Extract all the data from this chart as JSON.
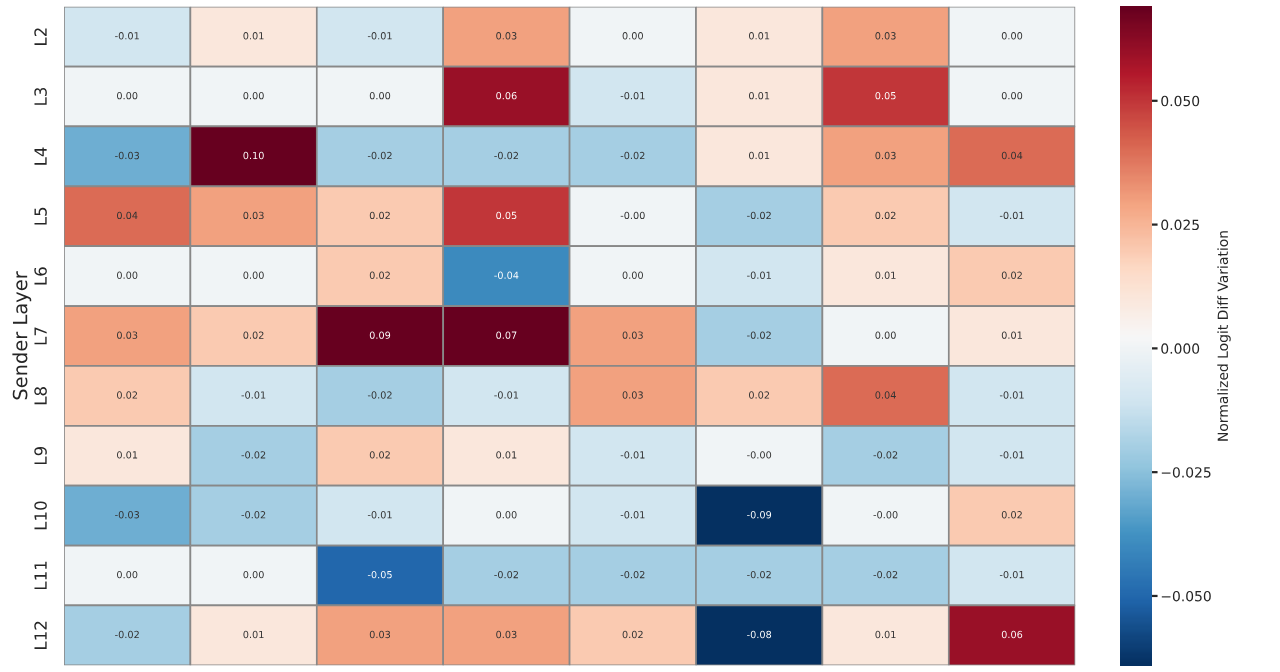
{
  "chart_data": {
    "type": "heatmap",
    "ylabel": "Sender Layer",
    "clabel": "Normalized Logit Diff Variation",
    "categories": [
      null,
      null,
      null,
      null,
      null,
      null,
      null,
      null
    ],
    "y_categories": [
      "L2",
      "L3",
      "L4",
      "L5",
      "L6",
      "L7",
      "L8",
      "L9",
      "L10",
      "L11",
      "L12"
    ],
    "cells": [
      [
        -0.01,
        0.01,
        -0.01,
        0.03,
        0.0,
        0.01,
        0.03,
        0.0
      ],
      [
        0.0,
        0.0,
        0.0,
        0.06,
        -0.01,
        0.01,
        0.05,
        0.0
      ],
      [
        -0.03,
        0.1,
        -0.02,
        -0.02,
        -0.02,
        0.01,
        0.03,
        0.04
      ],
      [
        0.04,
        0.03,
        0.02,
        0.05,
        -0.0,
        -0.02,
        0.02,
        -0.01
      ],
      [
        0.0,
        0.0,
        0.02,
        -0.04,
        0.0,
        -0.01,
        0.01,
        0.02
      ],
      [
        0.03,
        0.02,
        0.09,
        0.07,
        0.03,
        -0.02,
        0.0,
        0.01
      ],
      [
        0.02,
        -0.01,
        -0.02,
        -0.01,
        0.03,
        0.02,
        0.04,
        -0.01
      ],
      [
        0.01,
        -0.02,
        0.02,
        0.01,
        -0.01,
        -0.0,
        -0.02,
        -0.01
      ],
      [
        -0.03,
        -0.02,
        -0.01,
        0.0,
        -0.01,
        -0.09,
        -0.0,
        0.02
      ],
      [
        0.0,
        0.0,
        -0.05,
        -0.02,
        -0.02,
        -0.02,
        -0.02,
        -0.01
      ],
      [
        -0.02,
        0.01,
        0.03,
        0.03,
        0.02,
        -0.08,
        0.01,
        0.06
      ]
    ],
    "cell_labels": [
      [
        "-0.01",
        "0.01",
        "-0.01",
        "0.03",
        "0.00",
        "0.01",
        "0.03",
        "0.00"
      ],
      [
        "0.00",
        "0.00",
        "0.00",
        "0.06",
        "-0.01",
        "0.01",
        "0.05",
        "0.00"
      ],
      [
        "-0.03",
        "0.10",
        "-0.02",
        "-0.02",
        "-0.02",
        "0.01",
        "0.03",
        "0.04"
      ],
      [
        "0.04",
        "0.03",
        "0.02",
        "0.05",
        "-0.00",
        "-0.02",
        "0.02",
        "-0.01"
      ],
      [
        "0.00",
        "0.00",
        "0.02",
        "-0.04",
        "0.00",
        "-0.01",
        "0.01",
        "0.02"
      ],
      [
        "0.03",
        "0.02",
        "0.09",
        "0.07",
        "0.03",
        "-0.02",
        "0.00",
        "0.01"
      ],
      [
        "0.02",
        "-0.01",
        "-0.02",
        "-0.01",
        "0.03",
        "0.02",
        "0.04",
        "-0.01"
      ],
      [
        "0.01",
        "-0.02",
        "0.02",
        "0.01",
        "-0.01",
        "-0.00",
        "-0.02",
        "-0.01"
      ],
      [
        "-0.03",
        "-0.02",
        "-0.01",
        "0.00",
        "-0.01",
        "-0.09",
        "-0.00",
        "0.02"
      ],
      [
        "0.00",
        "0.00",
        "-0.05",
        "-0.02",
        "-0.02",
        "-0.02",
        "-0.02",
        "-0.01"
      ],
      [
        "-0.02",
        "0.01",
        "0.03",
        "0.03",
        "0.02",
        "-0.08",
        "0.01",
        "0.06"
      ]
    ],
    "clim": [
      -0.064,
      0.069
    ],
    "cticks": [
      {
        "value": -0.05,
        "label": "−0.050"
      },
      {
        "value": -0.025,
        "label": "−0.025"
      },
      {
        "value": 0.0,
        "label": "0.000"
      },
      {
        "value": 0.025,
        "label": "0.025"
      },
      {
        "value": 0.05,
        "label": "0.050"
      }
    ]
  }
}
